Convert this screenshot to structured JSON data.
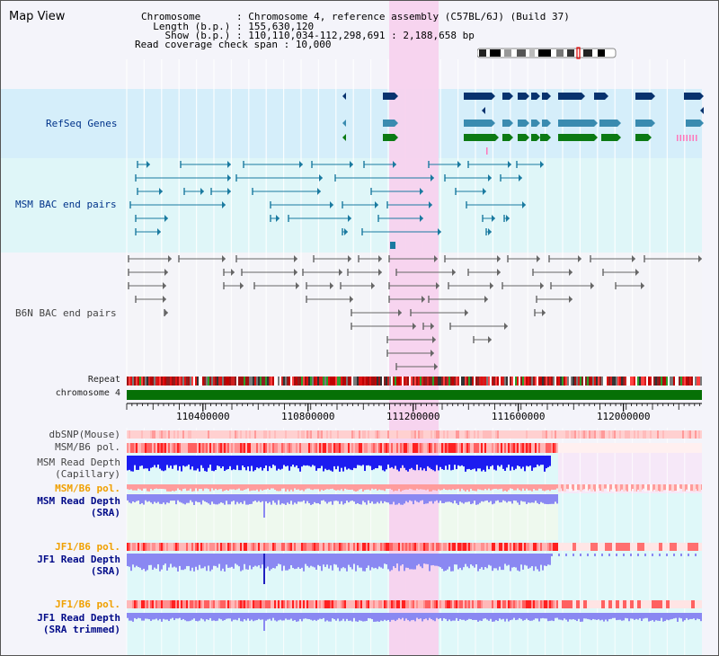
{
  "header": {
    "title": "Map View",
    "chromosome_label": "Chromosome      : ",
    "chromosome_value": "Chromosome 4, reference assembly (C57BL/6J) (Build 37)",
    "length_label": "  Length (b.p.) : ",
    "length_value": "155,630,120",
    "show_label": "    Show (b.p.) : ",
    "show_value": "110,110,034-112,298,691 : 2,188,658 bp",
    "coverage_label": "Read coverage check span : ",
    "coverage_value": "10,000"
  },
  "tracks": {
    "refseq": "RefSeq Genes",
    "msm_bac": "MSM BAC end pairs",
    "b6n_bac": "B6N BAC end pairs",
    "repeat": "Repeat",
    "chromosome": "chromosome 4",
    "dbsnp": "dbSNP(Mouse)",
    "msm_b6_pol": "MSM/B6 pol.",
    "msm_depth_cap_1": "MSM Read Depth",
    "msm_depth_cap_2": "(Capillary)",
    "msm_b6_pol_sra": "MSM/B6 pol.",
    "msm_depth_sra_1": "MSM Read Depth",
    "msm_depth_sra_2": "(SRA)",
    "jf1_b6_pol_1": "JF1/B6 pol.",
    "jf1_depth_sra_1": "JF1 Read Depth",
    "jf1_depth_sra_2": "(SRA)",
    "jf1_b6_pol_2": "JF1/B6 pol.",
    "jf1_depth_trim_1": "JF1 Read Depth",
    "jf1_depth_trim_2": "(SRA trimmed)"
  },
  "axis": {
    "ticks": [
      "110400000",
      "110800000",
      "111200000",
      "111600000",
      "112000000"
    ],
    "tick_values": [
      110400000,
      110800000,
      111200000,
      111600000,
      112000000
    ],
    "start": 110110034,
    "end": 112298691
  },
  "colors": {
    "highlight": "#f7d2ee",
    "refseq_bg": "#d5eefa",
    "msm_bg": "#dff6f8",
    "navy_gene": "#08326e",
    "blue_gene": "#3a8bb0",
    "green_gene": "#0c7a14",
    "chromosome_bar": "#067006",
    "depth_blue": "#1c1cf0",
    "depth_light": "#8a88f2"
  }
}
